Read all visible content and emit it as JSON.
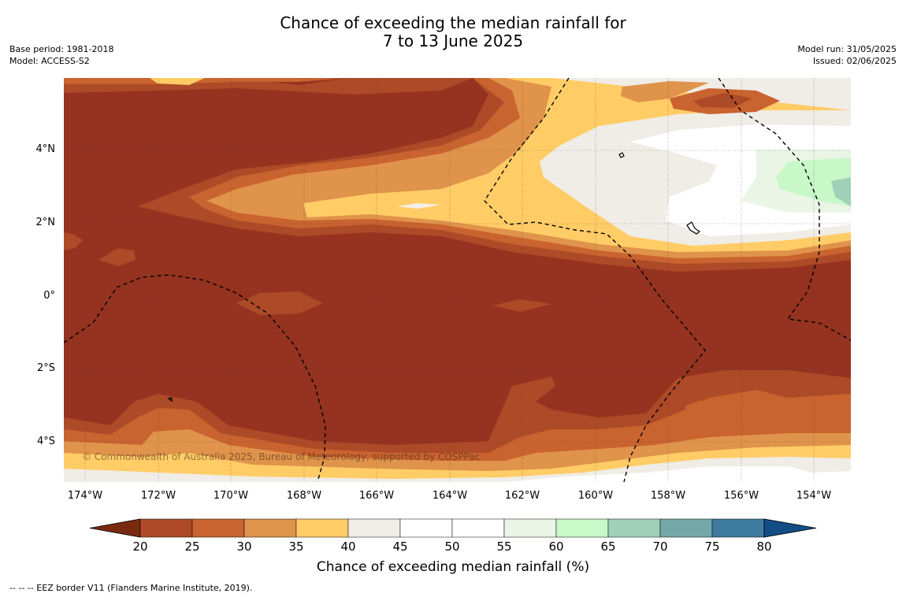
{
  "title": {
    "line1": "Chance of exceeding the median rainfall for",
    "line2": "7 to 13 June 2025"
  },
  "meta_left": {
    "base_period": "Base period: 1981-2018",
    "model": "Model: ACCESS-S2"
  },
  "meta_right": {
    "model_run": "Model run: 31/05/2025",
    "issued": "Issued: 02/06/2025"
  },
  "lat_labels": [
    "4°N",
    "2°N",
    "0°",
    "2°S",
    "4°S"
  ],
  "lon_labels": [
    "174°W",
    "172°W",
    "170°W",
    "168°W",
    "166°W",
    "164°W",
    "162°W",
    "160°W",
    "158°W",
    "156°W",
    "154°W"
  ],
  "copyright": "© Commonwealth of Australia 2025, Bureau of Meteorology, supported by COSPPac",
  "colorbar": {
    "ticks": [
      "20",
      "25",
      "30",
      "35",
      "40",
      "45",
      "50",
      "55",
      "60",
      "65",
      "70",
      "75",
      "80"
    ],
    "title": "Chance of exceeding median rainfall (%)",
    "under_color": "#7a2a10",
    "over_color": "#144c86",
    "bin_colors": [
      "#ad4a27",
      "#c9632f",
      "#e0934a",
      "#ffcc66",
      "#f0ece6",
      "#ffffff",
      "#ffffff",
      "#eaf5e6",
      "#c8f7c8",
      "#9fd1b8",
      "#74a7a8",
      "#3d7a9e"
    ]
  },
  "footnote": "--  --  -- EEZ border V11 (Flanders Marine Institute, 2019)."
}
